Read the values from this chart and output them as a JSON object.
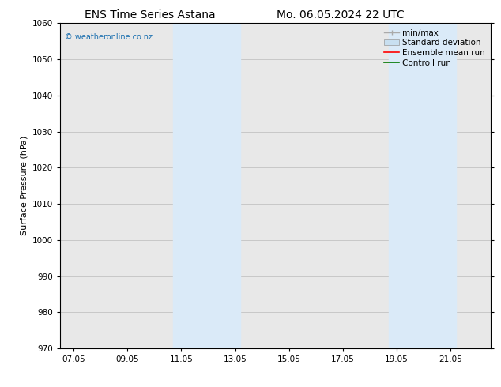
{
  "title_left": "ENS Time Series Astana",
  "title_right": "Mo. 06.05.2024 22 UTC",
  "ylabel": "Surface Pressure (hPa)",
  "ylim": [
    970,
    1060
  ],
  "yticks": [
    970,
    980,
    990,
    1000,
    1010,
    1020,
    1030,
    1040,
    1050,
    1060
  ],
  "xtick_labels": [
    "07.05",
    "09.05",
    "11.05",
    "13.05",
    "15.05",
    "17.05",
    "19.05",
    "21.05"
  ],
  "xtick_positions": [
    0,
    2,
    4,
    6,
    8,
    10,
    12,
    14
  ],
  "xlim_start": -0.5,
  "xlim_end": 15.5,
  "shaded_bands": [
    {
      "x_start": 3.7,
      "x_end": 6.2
    },
    {
      "x_start": 11.7,
      "x_end": 14.2
    }
  ],
  "shaded_color": "#daeaf8",
  "plot_bg_color": "#e8e8e8",
  "fig_bg_color": "#ffffff",
  "watermark_text": "© weatheronline.co.nz",
  "watermark_color": "#1a6faf",
  "legend_items": [
    {
      "label": "min/max",
      "color": "#aaaaaa",
      "style": "line_with_caps"
    },
    {
      "label": "Standard deviation",
      "color": "#c8dff0",
      "style": "filled_box"
    },
    {
      "label": "Ensemble mean run",
      "color": "#ff0000",
      "style": "line"
    },
    {
      "label": "Controll run",
      "color": "#007700",
      "style": "line"
    }
  ],
  "grid_color": "#bbbbbb",
  "title_fontsize": 10,
  "axis_label_fontsize": 8,
  "tick_fontsize": 7.5,
  "legend_fontsize": 7.5,
  "watermark_fontsize": 7
}
